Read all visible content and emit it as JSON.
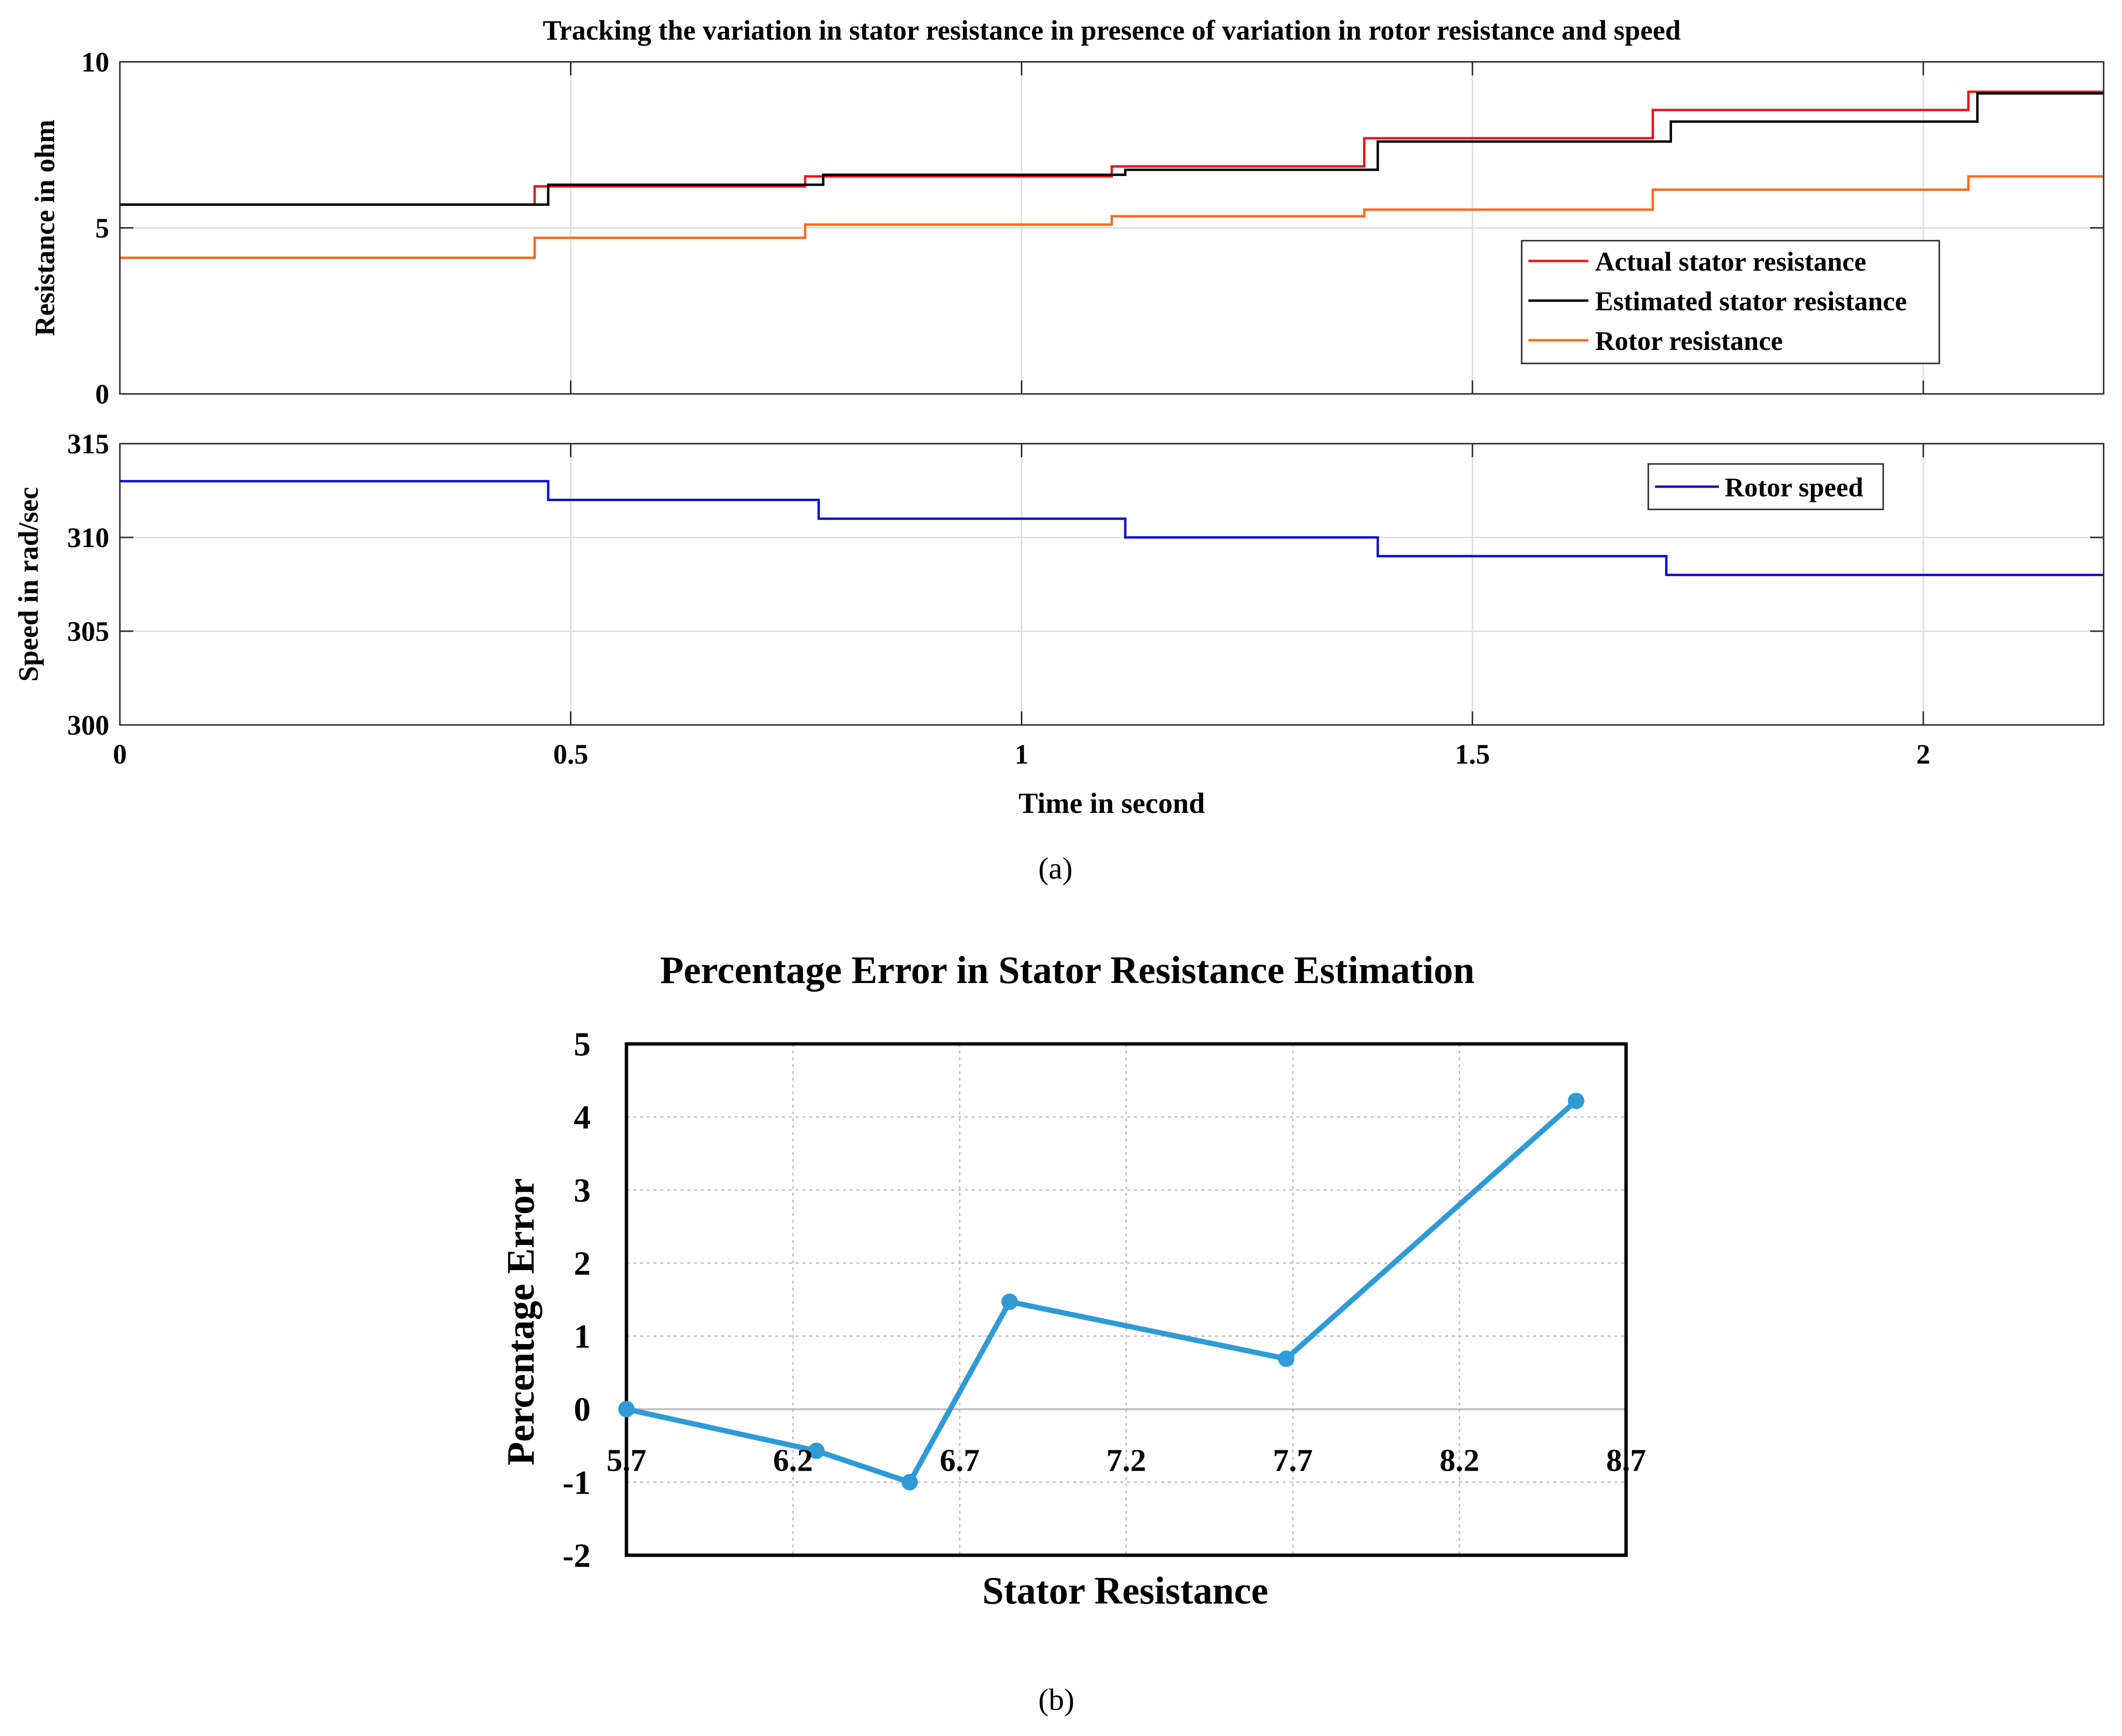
{
  "chart_data": [
    {
      "type": "line",
      "panel_label": "(a)",
      "title": "Tracking the variation in stator resistance in presence of variation in rotor resistance and speed",
      "xlabel": "Time in second",
      "x_ticks": [
        0,
        0.5,
        1,
        1.5,
        2
      ],
      "x_tick_labels": [
        "0",
        "0.5",
        "1",
        "1.5",
        "2"
      ],
      "xlim": [
        0,
        2.2
      ],
      "grid": true,
      "subplots": [
        {
          "name": "resistance",
          "ylabel": "Resistance in ohm",
          "ylim": [
            0,
            10
          ],
          "y_ticks": [
            0,
            5,
            10
          ],
          "y_tick_labels": [
            "0",
            "5",
            "10"
          ],
          "legend_position": "lower-right",
          "series": [
            {
              "name": "Actual stator resistance",
              "color": "#e31a1c",
              "step": true,
              "x": [
                0,
                0.46,
                0.76,
                1.1,
                1.38,
                1.7,
                2.05,
                2.2
              ],
              "y": [
                5.7,
                6.25,
                6.55,
                6.85,
                7.7,
                8.55,
                9.1,
                9.1
              ]
            },
            {
              "name": "Estimated stator resistance",
              "color": "#000000",
              "step": true,
              "x": [
                0,
                0.475,
                0.78,
                1.115,
                1.395,
                1.72,
                2.06,
                2.2
              ],
              "y": [
                5.7,
                6.3,
                6.6,
                6.75,
                7.6,
                8.2,
                9.05,
                9.05
              ]
            },
            {
              "name": "Rotor resistance",
              "color": "#ff6a1a",
              "step": true,
              "x": [
                0,
                0.46,
                0.76,
                1.1,
                1.38,
                1.7,
                2.05,
                2.2
              ],
              "y": [
                4.1,
                4.7,
                5.1,
                5.35,
                5.55,
                6.15,
                6.55,
                6.55
              ]
            }
          ]
        },
        {
          "name": "speed",
          "ylabel": "Speed in rad/sec",
          "ylim": [
            300,
            315
          ],
          "y_ticks": [
            300,
            305,
            310,
            315
          ],
          "y_tick_labels": [
            "300",
            "305",
            "310",
            "315"
          ],
          "legend_position": "top-right",
          "series": [
            {
              "name": "Rotor speed",
              "color": "#1010d0",
              "step": true,
              "x": [
                0,
                0.475,
                0.775,
                1.115,
                1.395,
                1.715,
                2.2
              ],
              "y": [
                313,
                312,
                311,
                310,
                309,
                308,
                308
              ]
            }
          ]
        }
      ]
    },
    {
      "type": "line",
      "panel_label": "(b)",
      "title": "Percentage Error in Stator Resistance Estimation",
      "xlabel": "Stator Resistance",
      "ylabel": "Percentage Error",
      "xlim": [
        5.7,
        8.7
      ],
      "ylim": [
        -2,
        5
      ],
      "x_ticks": [
        5.7,
        6.2,
        6.7,
        7.2,
        7.7,
        8.2,
        8.7
      ],
      "x_tick_labels": [
        "5.7",
        "6.2",
        "6.7",
        "7.2",
        "7.7",
        "8.2",
        "8.7"
      ],
      "y_ticks": [
        -2,
        -1,
        0,
        1,
        2,
        3,
        4,
        5
      ],
      "y_tick_labels": [
        "-2",
        "-1",
        "0",
        "1",
        "2",
        "3",
        "4",
        "5"
      ],
      "grid": true,
      "legend_position": "none",
      "series": [
        {
          "name": "Percentage Error",
          "color": "#2e9bd6",
          "x": [
            5.7,
            6.27,
            6.55,
            6.85,
            7.68,
            8.55
          ],
          "y": [
            0,
            -0.57,
            -1.0,
            1.47,
            0.69,
            4.22
          ]
        }
      ]
    }
  ]
}
